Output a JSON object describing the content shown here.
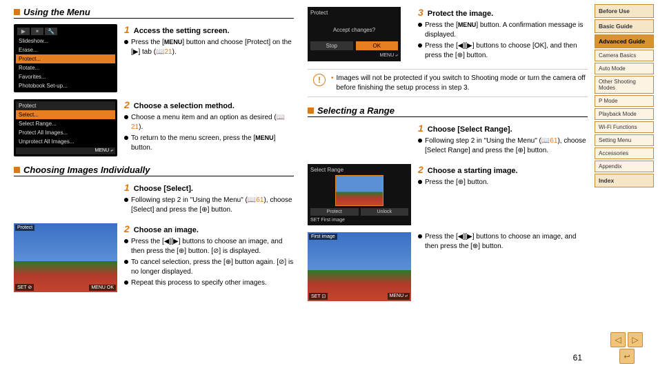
{
  "colors": {
    "accent": "#d97a1a",
    "menu_highlight": "#e67e22"
  },
  "page_number": "61",
  "left": {
    "s1": {
      "title": "Using the Menu",
      "menu1": {
        "tabs": [
          "▶",
          "✶",
          "🔧"
        ],
        "items": [
          "Slideshow...",
          "Erase...",
          "Protect...",
          "Rotate...",
          "Favorites...",
          "Photobook Set-up..."
        ],
        "selected": 2
      },
      "step1": {
        "num": "1",
        "title": "Access the setting screen.",
        "b1": "Press the [",
        "menu": "MENU",
        "b1b": "] button and choose [Protect] on the [▶] tab (",
        "ref": "📖21",
        "b1c": ")."
      },
      "menu2": {
        "header": "Protect",
        "items": [
          "Select...",
          "Select Range...",
          "Protect All Images...",
          "Unprotect All Images..."
        ],
        "selected": 0,
        "foot": "MENU ⤶"
      },
      "step2": {
        "num": "2",
        "title": "Choose a selection method.",
        "b1": "Choose a menu item and an option as desired (",
        "ref": "📖21",
        "b1b": ").",
        "b2": "To return to the menu screen, press the [",
        "menu": "MENU",
        "b2b": "] button."
      }
    },
    "s2": {
      "title": "Choosing Images Individually",
      "step1": {
        "num": "1",
        "title": "Choose [Select].",
        "b1": "Following step 2 in \"Using the Menu\" (",
        "ref": "📖61",
        "b1b": "), choose [Select] and press the [⊕] button."
      },
      "photo": {
        "tl": "Protect",
        "bl": "SET ⊘",
        "br": "MENU OK"
      },
      "step2": {
        "num": "2",
        "title": "Choose an image.",
        "b1": "Press the [◀][▶] buttons to choose an image, and then press the [⊕] button. [⊘] is displayed.",
        "b2": "To cancel selection, press the [⊕] button again. [⊘] is no longer displayed.",
        "b3": "Repeat this process to specify other images."
      }
    }
  },
  "right": {
    "protect_box": {
      "title": "Protect",
      "question": "Accept changes?",
      "stop": "Stop",
      "ok": "OK",
      "foot": "MENU ⤶"
    },
    "step3": {
      "num": "3",
      "title": "Protect the image.",
      "b1": "Press the [",
      "menu": "MENU",
      "b1b": "] button. A confirmation message is displayed.",
      "b2": "Press the [◀][▶] buttons to choose [OK], and then press the [⊕] button."
    },
    "warning": "Images will not be protected if you switch to Shooting mode or turn the camera off before finishing the setup process in step 3.",
    "s3": {
      "title": "Selecting a Range",
      "step1": {
        "num": "1",
        "title": "Choose [Select Range].",
        "b1": "Following step 2 in \"Using the Menu\" (",
        "ref": "📖61",
        "b1b": "), choose [Select Range] and press the [⊕] button."
      },
      "range_box": {
        "title": "Select Range",
        "btn1": "Protect",
        "btn2": "Unlock",
        "foot": "SET First image"
      },
      "step2": {
        "num": "2",
        "title": "Choose a starting image.",
        "b1": "Press the [⊕] button."
      },
      "photo": {
        "tl": "First image",
        "bl": "SET ⊡",
        "br": "MENU ⤶"
      },
      "tail": {
        "b1": "Press the [◀][▶] buttons to choose an image, and then press the [⊕] button."
      }
    }
  },
  "sidebar": {
    "items": [
      {
        "label": "Before Use",
        "type": "header"
      },
      {
        "label": "Basic Guide",
        "type": "header"
      },
      {
        "label": "Advanced Guide",
        "type": "active"
      },
      {
        "label": "Camera Basics",
        "type": "sub"
      },
      {
        "label": "Auto Mode",
        "type": "sub"
      },
      {
        "label": "Other Shooting Modes",
        "type": "sub"
      },
      {
        "label": "P Mode",
        "type": "sub"
      },
      {
        "label": "Playback Mode",
        "type": "sub"
      },
      {
        "label": "Wi-Fi Functions",
        "type": "sub"
      },
      {
        "label": "Setting Menu",
        "type": "sub"
      },
      {
        "label": "Accessories",
        "type": "sub"
      },
      {
        "label": "Appendix",
        "type": "sub"
      },
      {
        "label": "Index",
        "type": "header"
      }
    ]
  },
  "nav": {
    "prev": "◁",
    "next": "▷",
    "return": "↩"
  }
}
